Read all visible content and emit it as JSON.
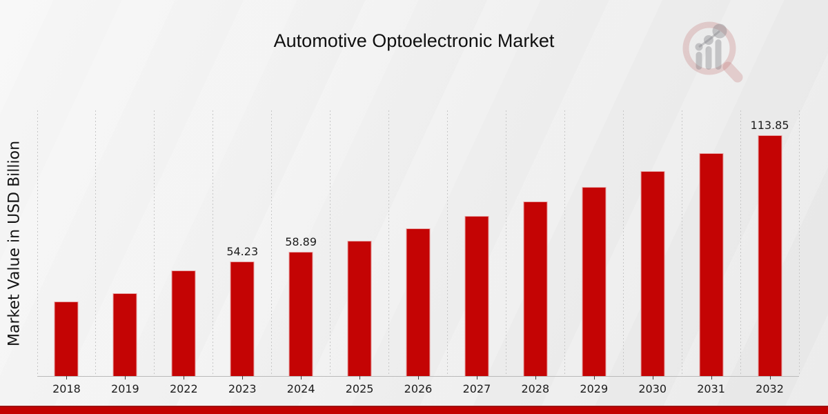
{
  "title": "Automotive Optoelectronic Market",
  "watermark_icon": "market-research-future-logo",
  "footer": {
    "band_color": "#c30101"
  },
  "chart_data": {
    "type": "bar",
    "title": "Automotive Optoelectronic Market",
    "xlabel": "",
    "ylabel": "Market Value in USD Billion",
    "categories": [
      "2018",
      "2019",
      "2022",
      "2023",
      "2024",
      "2025",
      "2026",
      "2027",
      "2028",
      "2029",
      "2030",
      "2031",
      "2032"
    ],
    "values": [
      35.2,
      39.2,
      49.9,
      54.23,
      58.89,
      64.0,
      69.7,
      75.7,
      82.4,
      89.4,
      97.0,
      105.3,
      113.85
    ],
    "data_labels": [
      "",
      "",
      "",
      "54.23",
      "58.89",
      "",
      "",
      "",
      "",
      "",
      "",
      "",
      "113.85"
    ],
    "ylim": [
      0,
      125.6
    ],
    "bar_color": "#c40404",
    "grid": "vertical-dashed",
    "legend_position": "none"
  }
}
